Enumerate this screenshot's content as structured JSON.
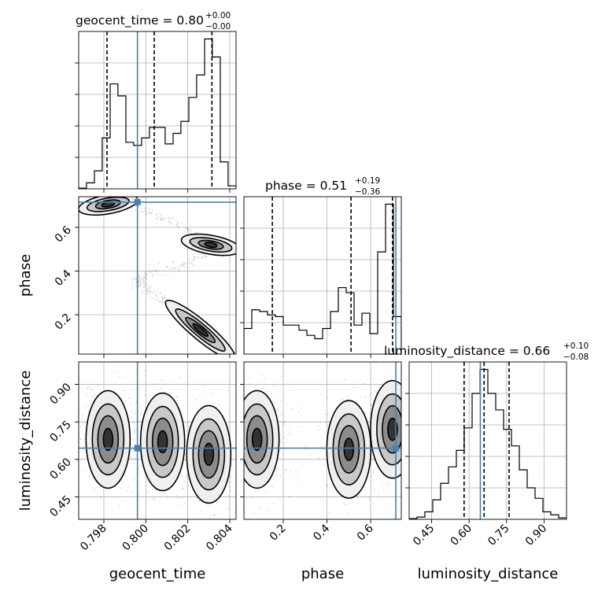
{
  "chart_data": {
    "type": "corner",
    "parameters": [
      "geocent_time",
      "phase",
      "luminosity_distance"
    ],
    "truths": {
      "geocent_time": 0.7996,
      "phase": 0.715,
      "luminosity_distance": 0.645
    },
    "titles": {
      "geocent_time": {
        "label": "geocent_time = 0.80",
        "plus": "+0.00",
        "minus": "−0.00"
      },
      "phase": {
        "label": "phase = 0.51",
        "plus": "+0.19",
        "minus": "−0.36"
      },
      "luminosity_distance": {
        "label": "luminosity_distance = 0.66",
        "plus": "+0.10",
        "minus": "−0.08"
      }
    },
    "axes": {
      "geocent_time": {
        "range": [
          0.7968,
          0.8043
        ],
        "ticks": [
          0.798,
          0.8,
          0.802,
          0.804
        ],
        "tick_labels": [
          "0.798",
          "0.800",
          "0.802",
          "0.804"
        ],
        "xlabel": "geocent_time"
      },
      "phase": {
        "range": [
          0.02,
          0.74
        ],
        "ticks": [
          0.2,
          0.4,
          0.6
        ],
        "tick_labels": [
          "0.2",
          "0.4",
          "0.6"
        ],
        "xlabel": "phase",
        "ylabel": "phase"
      },
      "luminosity_distance": {
        "range": [
          0.36,
          0.99
        ],
        "ticks": [
          0.45,
          0.6,
          0.75,
          0.9
        ],
        "tick_labels": [
          "0.45",
          "0.60",
          "0.75",
          "0.90"
        ],
        "xlabel": "luminosity_distance",
        "ylabel": "luminosity_distance"
      }
    },
    "histograms": {
      "geocent_time": {
        "edges": [
          0.7968,
          0.79717,
          0.79755,
          0.79792,
          0.7983,
          0.79867,
          0.79905,
          0.79942,
          0.7998,
          0.80017,
          0.80055,
          0.80092,
          0.8013,
          0.80167,
          0.80205,
          0.80242,
          0.8028,
          0.80317,
          0.80355,
          0.80392,
          0.8043
        ],
        "counts": [
          0.5,
          4,
          12,
          34,
          70,
          62,
          31,
          29,
          34,
          41,
          41,
          30,
          37,
          45,
          61,
          76,
          100,
          88,
          18,
          2
        ],
        "quantiles": [
          0.79815,
          0.8004,
          0.80315
        ]
      },
      "phase": {
        "edges": [
          0.02,
          0.056,
          0.092,
          0.128,
          0.164,
          0.2,
          0.236,
          0.272,
          0.308,
          0.344,
          0.38,
          0.416,
          0.452,
          0.488,
          0.524,
          0.56,
          0.596,
          0.632,
          0.668,
          0.704,
          0.74
        ],
        "counts": [
          15,
          26,
          25,
          23,
          22,
          17,
          17,
          14,
          11,
          9,
          15,
          25,
          39,
          36,
          17,
          24,
          12,
          60,
          88,
          22
        ],
        "quantiles": [
          0.15,
          0.51,
          0.7
        ]
      },
      "luminosity_distance": {
        "edges": [
          0.36,
          0.3915,
          0.423,
          0.4545,
          0.486,
          0.5175,
          0.549,
          0.5805,
          0.612,
          0.6435,
          0.675,
          0.7065,
          0.738,
          0.7695,
          0.801,
          0.8325,
          0.864,
          0.8955,
          0.927,
          0.9585,
          0.99
        ],
        "counts": [
          0.5,
          1.5,
          5,
          13,
          24,
          35,
          46,
          61,
          84,
          100,
          84,
          73,
          60,
          49,
          33,
          21,
          14,
          5,
          3,
          1
        ],
        "quantiles": [
          0.58,
          0.66,
          0.76
        ]
      }
    },
    "contours_2d": {
      "phase_vs_geocent_time": {
        "density_centers": [
          [
            0.7982,
            0.705
          ],
          [
            0.8031,
            0.52
          ],
          [
            0.8026,
            0.13
          ]
        ],
        "sample_path": [
          [
            0.7974,
            0.745
          ],
          [
            0.7982,
            0.71
          ],
          [
            0.7995,
            0.69
          ],
          [
            0.8012,
            0.63
          ],
          [
            0.8028,
            0.55
          ],
          [
            0.8031,
            0.5
          ],
          [
            0.802,
            0.43
          ],
          [
            0.8,
            0.39
          ],
          [
            0.7995,
            0.35
          ],
          [
            0.8003,
            0.3
          ],
          [
            0.8012,
            0.24
          ],
          [
            0.8025,
            0.15
          ],
          [
            0.8036,
            0.06
          ]
        ]
      },
      "luminosity_distance_vs_geocent_time": {
        "density_centers": [
          [
            0.7982,
            0.68
          ],
          [
            0.8008,
            0.67
          ],
          [
            0.803,
            0.62
          ]
        ]
      },
      "luminosity_distance_vs_phase": {
        "density_centers": [
          [
            0.08,
            0.68
          ],
          [
            0.5,
            0.64
          ],
          [
            0.7,
            0.72
          ]
        ]
      }
    }
  }
}
